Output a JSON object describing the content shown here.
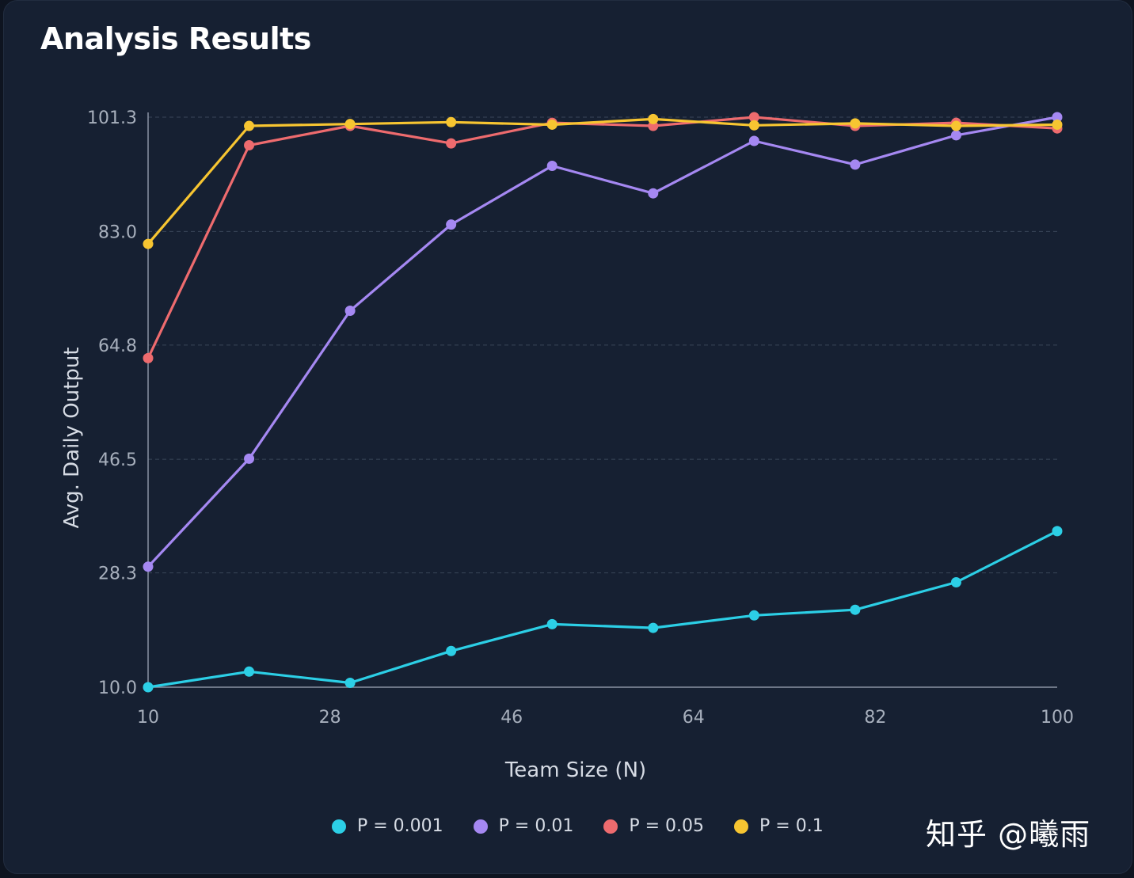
{
  "title": "Analysis Results",
  "watermark": "知乎 @曦雨",
  "colors": {
    "background": "#162032",
    "grid": "#3a4659",
    "axis": "#8a93a3",
    "tick_text": "#a7afbc",
    "label_text": "#d6dbe4"
  },
  "chart_data": {
    "type": "line",
    "xlabel": "Team Size (N)",
    "ylabel": "Avg. Daily Output",
    "xlim": [
      10,
      100
    ],
    "ylim": [
      10.0,
      101.3
    ],
    "xticks": [
      "10",
      "28",
      "46",
      "64",
      "82",
      "100"
    ],
    "yticks": [
      "10.0",
      "28.3",
      "46.5",
      "64.8",
      "83.0",
      "101.3"
    ],
    "grid": "horizontal dashed",
    "legend_position": "bottom",
    "x": [
      10,
      20,
      30,
      40,
      50,
      60,
      70,
      80,
      90,
      100
    ],
    "series": [
      {
        "name": "P = 0.001",
        "color": "#2ccfe6",
        "values": [
          10.0,
          12.5,
          10.7,
          15.8,
          20.1,
          19.5,
          21.5,
          22.4,
          26.8,
          35.0
        ]
      },
      {
        "name": "P = 0.01",
        "color": "#a588f2",
        "values": [
          29.3,
          46.6,
          70.3,
          84.1,
          93.5,
          89.1,
          97.5,
          93.7,
          98.4,
          101.3
        ]
      },
      {
        "name": "P = 0.05",
        "color": "#ee6b6e",
        "values": [
          62.7,
          96.8,
          99.9,
          97.1,
          100.4,
          99.9,
          101.3,
          99.9,
          100.4,
          99.5
        ]
      },
      {
        "name": "P = 0.1",
        "color": "#f7c531",
        "values": [
          81.0,
          99.9,
          100.2,
          100.5,
          100.1,
          101.0,
          100.0,
          100.3,
          99.9,
          100.1
        ]
      }
    ]
  }
}
